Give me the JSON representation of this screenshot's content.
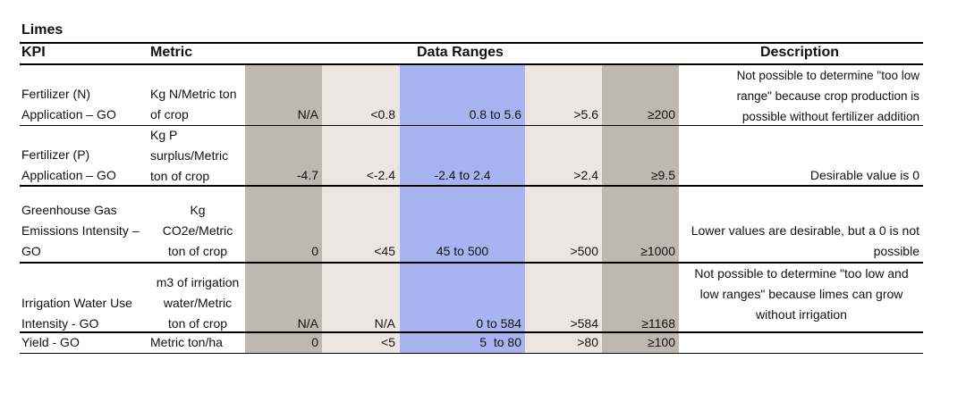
{
  "title": "Limes",
  "headers": {
    "kpi": "KPI",
    "metric": "Metric",
    "data_ranges": "Data Ranges",
    "description": "Description"
  },
  "rows": [
    {
      "kpi_lines": [
        "Fertilizer (N)",
        "Application – GO"
      ],
      "metric_lines": [
        "Kg N/Metric ton",
        "of crop"
      ],
      "ranges": [
        "N/A",
        "<0.8",
        "0.8 to 5.6",
        ">5.6",
        "≥200"
      ],
      "description_lines": [
        "Not possible to determine \"too low",
        "range\" because crop production is",
        "possible without fertilizer addition"
      ]
    },
    {
      "kpi_lines": [
        "Fertilizer (P)",
        "Application – GO"
      ],
      "metric_lines": [
        "Kg P",
        "surplus/Metric",
        "ton of crop"
      ],
      "ranges": [
        "-4.7",
        "<-2.4",
        "-2.4 to 2.4",
        ">2.4",
        "≥9.5"
      ],
      "description_lines": [
        "Desirable value is 0"
      ]
    },
    {
      "kpi_lines": [
        "Greenhouse Gas",
        "Emissions Intensity –",
        "GO"
      ],
      "metric_lines": [
        "Kg",
        "CO2e/Metric",
        "ton of crop"
      ],
      "ranges": [
        "0",
        "<45",
        "45 to 500",
        ">500",
        "≥1000"
      ],
      "description_lines": [
        "Lower values are desirable, but a 0 is not",
        "possible"
      ]
    },
    {
      "kpi_lines": [
        "Irrigation Water Use",
        "Intensity - GO"
      ],
      "metric_lines": [
        "m3 of irrigation",
        "water/Metric",
        "ton of crop"
      ],
      "ranges": [
        "N/A",
        "N/A",
        "0 to 584",
        ">584",
        "≥1168"
      ],
      "description_lines": [
        "Not possible to determine \"too low and",
        "low ranges\" because limes can grow",
        "without irrigation"
      ]
    },
    {
      "kpi_lines": [
        "Yield - GO"
      ],
      "metric_lines": [
        "Metric ton/ha"
      ],
      "ranges": [
        "0",
        "<5",
        "5  to 80",
        ">80",
        "≥100"
      ],
      "description_lines": [
        ""
      ]
    }
  ]
}
